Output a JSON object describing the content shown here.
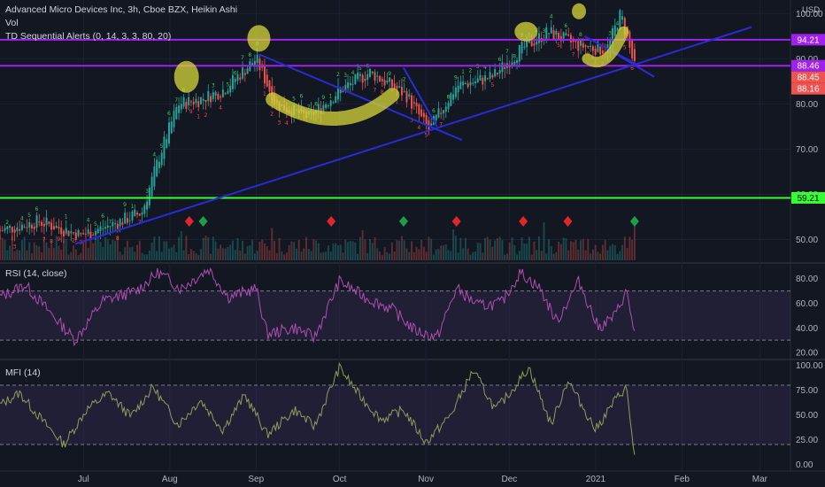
{
  "header": {
    "title": "Advanced Micro Devices Inc, 3h, Cboe BZX, Heikin Ashi",
    "vol_label": "Vol",
    "td_label": "TD Sequential Alerts (0, 14, 3, 3, 80, 20)"
  },
  "currency": "USD",
  "rsi_label": "RSI (14, close)",
  "mfi_label": "MFI (14)",
  "colors": {
    "background": "#131722",
    "bull": "#26a69a",
    "bear": "#ef5350",
    "trend": "#2b2bd6",
    "resistance": "#a020f0",
    "support": "#33ff33",
    "oscillator_rsi": "#b04fb0",
    "oscillator_mfi": "#8ca05a",
    "highlight": "#d8d83a"
  },
  "chart_data": [
    {
      "type": "candlestick",
      "name": "price",
      "x_ticks": [
        "Jul",
        "Aug",
        "Sep",
        "Oct",
        "Nov",
        "Dec",
        "2021",
        "Feb",
        "Mar"
      ],
      "y_ticks": [
        50.0,
        60.0,
        70.0,
        80.0,
        90.0,
        100.0
      ],
      "ylim": [
        45,
        103
      ],
      "price_tags": [
        {
          "value": 94.21,
          "label": "94.21",
          "color": "#a020f0"
        },
        {
          "value": 88.46,
          "label": "88.46",
          "color": "#a020f0"
        },
        {
          "value": 88.45,
          "label": "88.45",
          "color": "#ef5350"
        },
        {
          "value": 88.16,
          "label": "88.16",
          "color": "#ef5350"
        },
        {
          "value": 59.21,
          "label": "59.21",
          "color": "#33ff33"
        }
      ],
      "horizontal_lines": [
        94.21,
        88.46,
        59.21
      ],
      "approx_close_path": [
        {
          "date": "2020-06-01",
          "value": 52
        },
        {
          "date": "2020-06-15",
          "value": 54
        },
        {
          "date": "2020-06-30",
          "value": 51
        },
        {
          "date": "2020-07-10",
          "value": 53
        },
        {
          "date": "2020-07-22",
          "value": 56
        },
        {
          "date": "2020-07-28",
          "value": 68
        },
        {
          "date": "2020-08-04",
          "value": 80
        },
        {
          "date": "2020-08-12",
          "value": 81
        },
        {
          "date": "2020-08-20",
          "value": 83
        },
        {
          "date": "2020-09-01",
          "value": 90
        },
        {
          "date": "2020-09-08",
          "value": 80
        },
        {
          "date": "2020-09-20",
          "value": 77
        },
        {
          "date": "2020-10-01",
          "value": 83
        },
        {
          "date": "2020-10-12",
          "value": 87
        },
        {
          "date": "2020-10-25",
          "value": 82
        },
        {
          "date": "2020-11-02",
          "value": 74
        },
        {
          "date": "2020-11-12",
          "value": 84
        },
        {
          "date": "2020-11-25",
          "value": 86
        },
        {
          "date": "2020-12-05",
          "value": 92
        },
        {
          "date": "2020-12-15",
          "value": 96
        },
        {
          "date": "2020-12-25",
          "value": 93
        },
        {
          "date": "2021-01-05",
          "value": 92
        },
        {
          "date": "2021-01-10",
          "value": 100
        },
        {
          "date": "2021-01-15",
          "value": 88
        }
      ],
      "signals": [
        {
          "date": "2020-08-08",
          "kind": "sell"
        },
        {
          "date": "2020-08-13",
          "kind": "buy"
        },
        {
          "date": "2020-09-28",
          "kind": "sell"
        },
        {
          "date": "2020-10-24",
          "kind": "buy"
        },
        {
          "date": "2020-11-12",
          "kind": "sell"
        },
        {
          "date": "2020-12-06",
          "kind": "sell"
        },
        {
          "date": "2020-12-22",
          "kind": "sell"
        },
        {
          "date": "2021-01-15",
          "kind": "buy"
        }
      ]
    },
    {
      "type": "line",
      "name": "RSI",
      "y_ticks": [
        20.0,
        40.0,
        60.0,
        80.0
      ],
      "ylim": [
        15,
        92
      ],
      "bands": [
        30,
        70
      ],
      "approx_path": [
        {
          "date": "2020-06-01",
          "value": 65
        },
        {
          "date": "2020-06-10",
          "value": 75
        },
        {
          "date": "2020-06-20",
          "value": 50
        },
        {
          "date": "2020-06-28",
          "value": 30
        },
        {
          "date": "2020-07-08",
          "value": 62
        },
        {
          "date": "2020-07-20",
          "value": 70
        },
        {
          "date": "2020-07-28",
          "value": 85
        },
        {
          "date": "2020-08-05",
          "value": 72
        },
        {
          "date": "2020-08-15",
          "value": 88
        },
        {
          "date": "2020-08-22",
          "value": 65
        },
        {
          "date": "2020-09-01",
          "value": 72
        },
        {
          "date": "2020-09-05",
          "value": 35
        },
        {
          "date": "2020-09-15",
          "value": 40
        },
        {
          "date": "2020-09-22",
          "value": 32
        },
        {
          "date": "2020-10-01",
          "value": 78
        },
        {
          "date": "2020-10-10",
          "value": 65
        },
        {
          "date": "2020-10-20",
          "value": 55
        },
        {
          "date": "2020-10-28",
          "value": 38
        },
        {
          "date": "2020-11-05",
          "value": 32
        },
        {
          "date": "2020-11-12",
          "value": 72
        },
        {
          "date": "2020-11-20",
          "value": 58
        },
        {
          "date": "2020-11-28",
          "value": 60
        },
        {
          "date": "2020-12-05",
          "value": 85
        },
        {
          "date": "2020-12-12",
          "value": 72
        },
        {
          "date": "2020-12-18",
          "value": 45
        },
        {
          "date": "2020-12-26",
          "value": 78
        },
        {
          "date": "2021-01-02",
          "value": 40
        },
        {
          "date": "2021-01-08",
          "value": 50
        },
        {
          "date": "2021-01-12",
          "value": 70
        },
        {
          "date": "2021-01-15",
          "value": 36
        }
      ]
    },
    {
      "type": "line",
      "name": "MFI",
      "y_ticks": [
        0.0,
        25.0,
        50.0,
        75.0,
        100.0
      ],
      "ylim": [
        -5,
        105
      ],
      "bands": [
        20,
        80
      ],
      "approx_path": [
        {
          "date": "2020-06-01",
          "value": 60
        },
        {
          "date": "2020-06-08",
          "value": 72
        },
        {
          "date": "2020-06-16",
          "value": 45
        },
        {
          "date": "2020-06-24",
          "value": 20
        },
        {
          "date": "2020-07-02",
          "value": 55
        },
        {
          "date": "2020-07-10",
          "value": 72
        },
        {
          "date": "2020-07-18",
          "value": 48
        },
        {
          "date": "2020-07-26",
          "value": 78
        },
        {
          "date": "2020-08-04",
          "value": 40
        },
        {
          "date": "2020-08-12",
          "value": 65
        },
        {
          "date": "2020-08-20",
          "value": 35
        },
        {
          "date": "2020-08-28",
          "value": 70
        },
        {
          "date": "2020-09-05",
          "value": 30
        },
        {
          "date": "2020-09-15",
          "value": 55
        },
        {
          "date": "2020-09-22",
          "value": 38
        },
        {
          "date": "2020-10-01",
          "value": 98
        },
        {
          "date": "2020-10-08",
          "value": 70
        },
        {
          "date": "2020-10-16",
          "value": 45
        },
        {
          "date": "2020-10-24",
          "value": 55
        },
        {
          "date": "2020-11-01",
          "value": 22
        },
        {
          "date": "2020-11-10",
          "value": 50
        },
        {
          "date": "2020-11-18",
          "value": 95
        },
        {
          "date": "2020-11-26",
          "value": 55
        },
        {
          "date": "2020-12-02",
          "value": 75
        },
        {
          "date": "2020-12-08",
          "value": 98
        },
        {
          "date": "2020-12-16",
          "value": 40
        },
        {
          "date": "2020-12-22",
          "value": 85
        },
        {
          "date": "2021-01-01",
          "value": 35
        },
        {
          "date": "2021-01-08",
          "value": 65
        },
        {
          "date": "2021-01-12",
          "value": 78
        },
        {
          "date": "2021-01-15",
          "value": 8
        }
      ]
    }
  ]
}
